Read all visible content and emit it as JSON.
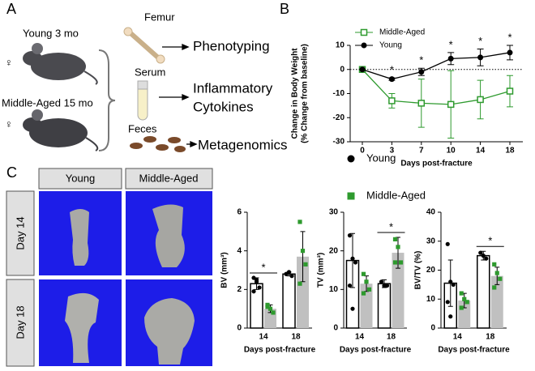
{
  "panel_labels": [
    "A",
    "B",
    "C"
  ],
  "diagram": {
    "young": "Young 3 mo",
    "middle_aged": "Middle-Aged 15 mo",
    "female_symbol": "♀",
    "femur": "Femur",
    "serum": "Serum",
    "feces": "Feces",
    "outputs": {
      "phenotyping": "Phenotyping",
      "cytokines": [
        "Inflammatory",
        "Cytokines"
      ],
      "metagenomics": "Metagenomics"
    }
  },
  "images": {
    "columns": [
      "Young",
      "Middle-Aged"
    ],
    "rows": [
      "Day 14",
      "Day 18"
    ]
  },
  "chart_data": [
    {
      "type": "line",
      "xlabel": "Days post-fracture",
      "ylabel": [
        "Change in Body Weight",
        "(% Change from baseline)"
      ],
      "categories": [
        0,
        3,
        7,
        10,
        14,
        18
      ],
      "ylim": [
        -30,
        10
      ],
      "yticks": [
        -30,
        -20,
        -10,
        0,
        10
      ],
      "reference_line": 0,
      "legend": "upper left",
      "series": [
        {
          "name": "Middle-Aged",
          "color": "#2e9a2e",
          "marker": "open-square",
          "values": [
            0,
            -13,
            -14,
            -14.5,
            -12.5,
            -9
          ],
          "errors": [
            0,
            3,
            10,
            14,
            8,
            6.5
          ]
        },
        {
          "name": "Young",
          "color": "#000000",
          "marker": "circle",
          "values": [
            0,
            -4,
            -1,
            4.5,
            5,
            7
          ],
          "errors": [
            0,
            0.5,
            1.5,
            2.5,
            3.5,
            3
          ]
        }
      ],
      "annotations": [
        {
          "text": "*",
          "x": 3
        },
        {
          "text": "*",
          "x": 7
        },
        {
          "text": "*",
          "x": 10
        },
        {
          "text": "*",
          "x": 14
        },
        {
          "text": "*",
          "x": 18
        }
      ]
    },
    {
      "type": "bar",
      "xlabel": "Days post-fracture",
      "ylabel": "BV (mm³)",
      "categories": [
        14,
        18
      ],
      "ylim": [
        0,
        6
      ],
      "yticks": [
        0,
        2,
        4,
        6
      ],
      "legend": "top",
      "series": [
        {
          "name": "Young",
          "color": "#000000",
          "bar_color": "#ffffff",
          "marker": "circle",
          "values": [
            2.3,
            2.8
          ],
          "errors": [
            0.3,
            0.1
          ],
          "points": [
            [
              2.6,
              2.4,
              2.1,
              1.9,
              2.5
            ],
            [
              2.8,
              2.9,
              2.7
            ]
          ]
        },
        {
          "name": "Middle-Aged",
          "color": "#2e9a2e",
          "bar_color": "#c0c0c0",
          "marker": "square",
          "values": [
            1.0,
            3.7
          ],
          "errors": [
            0.2,
            1.3
          ],
          "points": [
            [
              1.2,
              1.0,
              0.8,
              1.1
            ],
            [
              5.5,
              4.0,
              3.3,
              2.3
            ]
          ]
        }
      ],
      "annotations": [
        {
          "text": "*",
          "x": 14
        }
      ]
    },
    {
      "type": "bar",
      "xlabel": "Days post-fracture",
      "ylabel": "TV (mm³)",
      "categories": [
        14,
        18
      ],
      "ylim": [
        0,
        30
      ],
      "yticks": [
        0,
        10,
        20,
        30
      ],
      "series": [
        {
          "name": "Young",
          "color": "#000000",
          "bar_color": "#ffffff",
          "marker": "circle",
          "values": [
            17.5,
            11.5
          ],
          "errors": [
            7,
            1
          ],
          "points": [
            [
              24,
              18,
              17,
              11,
              5
            ],
            [
              12,
              11,
              11
            ]
          ]
        },
        {
          "name": "Middle-Aged",
          "color": "#2e9a2e",
          "bar_color": "#c0c0c0",
          "marker": "square",
          "values": [
            11.5,
            19.5
          ],
          "errors": [
            2,
            4
          ],
          "points": [
            [
              14,
              12,
              10,
              9
            ],
            [
              23,
              21,
              17,
              17
            ]
          ]
        }
      ],
      "annotations": [
        {
          "text": "*",
          "x": 18
        }
      ]
    },
    {
      "type": "bar",
      "xlabel": "Days post-fracture",
      "ylabel": "BV/TV (%)",
      "categories": [
        14,
        18
      ],
      "ylim": [
        0,
        40
      ],
      "yticks": [
        0,
        10,
        20,
        30,
        40
      ],
      "series": [
        {
          "name": "Young",
          "color": "#000000",
          "bar_color": "#ffffff",
          "marker": "circle",
          "values": [
            15.5,
            25
          ],
          "errors": [
            8,
            1.5
          ],
          "points": [
            [
              29,
              16,
              15,
              9,
              4
            ],
            [
              26,
              25,
              24
            ]
          ]
        },
        {
          "name": "Middle-Aged",
          "color": "#2e9a2e",
          "bar_color": "#c0c0c0",
          "marker": "square",
          "values": [
            9.5,
            18
          ],
          "errors": [
            2.5,
            3
          ],
          "points": [
            [
              12,
              10,
              9,
              7
            ],
            [
              22,
              19,
              17,
              14
            ]
          ]
        }
      ],
      "annotations": [
        {
          "text": "*",
          "x": 18
        }
      ]
    }
  ]
}
